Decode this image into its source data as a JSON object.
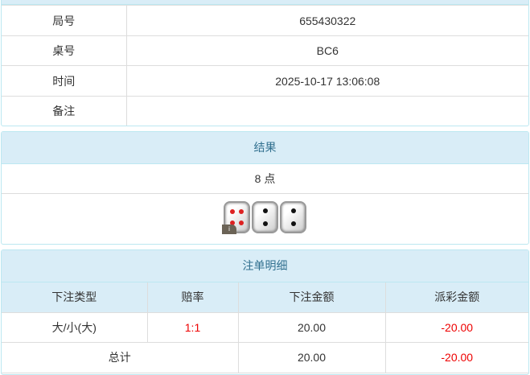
{
  "info": [
    {
      "label": "局号",
      "value": "655430322"
    },
    {
      "label": "桌号",
      "value": "BC6"
    },
    {
      "label": "时间",
      "value": "2025-10-17 13:06:08"
    },
    {
      "label": "备注",
      "value": ""
    }
  ],
  "result": {
    "title": "结果",
    "points": "8 点",
    "dice": [
      4,
      2,
      2
    ],
    "badge": "i"
  },
  "bets": {
    "title": "注单明细",
    "headers": [
      "下注类型",
      "赔率",
      "下注金额",
      "派彩金额"
    ],
    "rows": [
      {
        "type": "大/小(大)",
        "odds": "1:1",
        "amount": "20.00",
        "payout": "-20.00"
      }
    ],
    "total": {
      "label": "总计",
      "amount": "20.00",
      "payout": "-20.00"
    }
  },
  "colors": {
    "header_bg": "#d9edf7",
    "header_text": "#31708f",
    "negative": "#e00000"
  }
}
